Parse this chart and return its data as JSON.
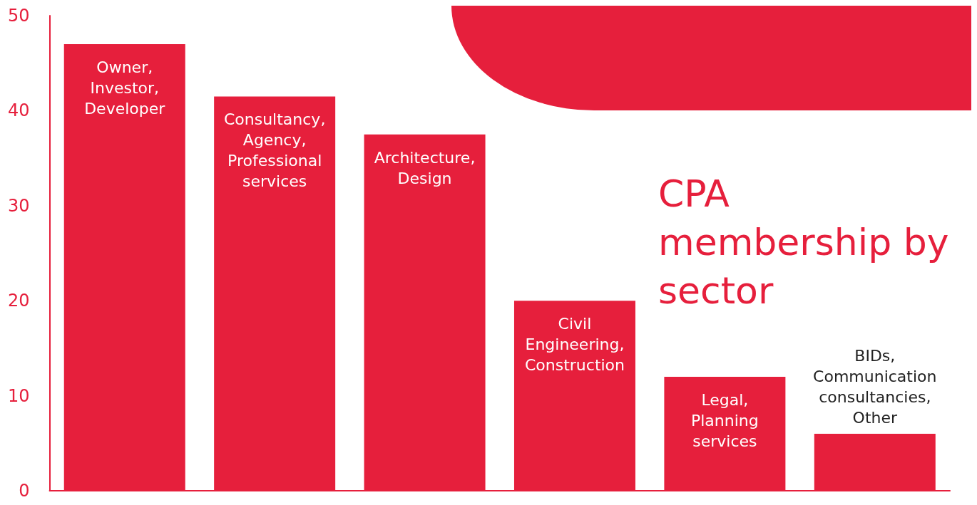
{
  "chart_data": {
    "type": "bar",
    "title": "CPA membership by sector",
    "categories": [
      "Owner, Investor, Developer",
      "Consultancy, Agency, Professional services",
      "Architecture, Design",
      "Civil Engineering, Construction",
      "Legal, Planning services",
      "BIDs, Communication consultancies, Other"
    ],
    "values": [
      47,
      41.5,
      37.5,
      20,
      12,
      6
    ],
    "color": "#e61f3c",
    "ylim": [
      0,
      50
    ],
    "yticks": [
      0,
      10,
      20,
      30,
      40,
      50
    ],
    "grid": false,
    "tick_labels": "y"
  }
}
